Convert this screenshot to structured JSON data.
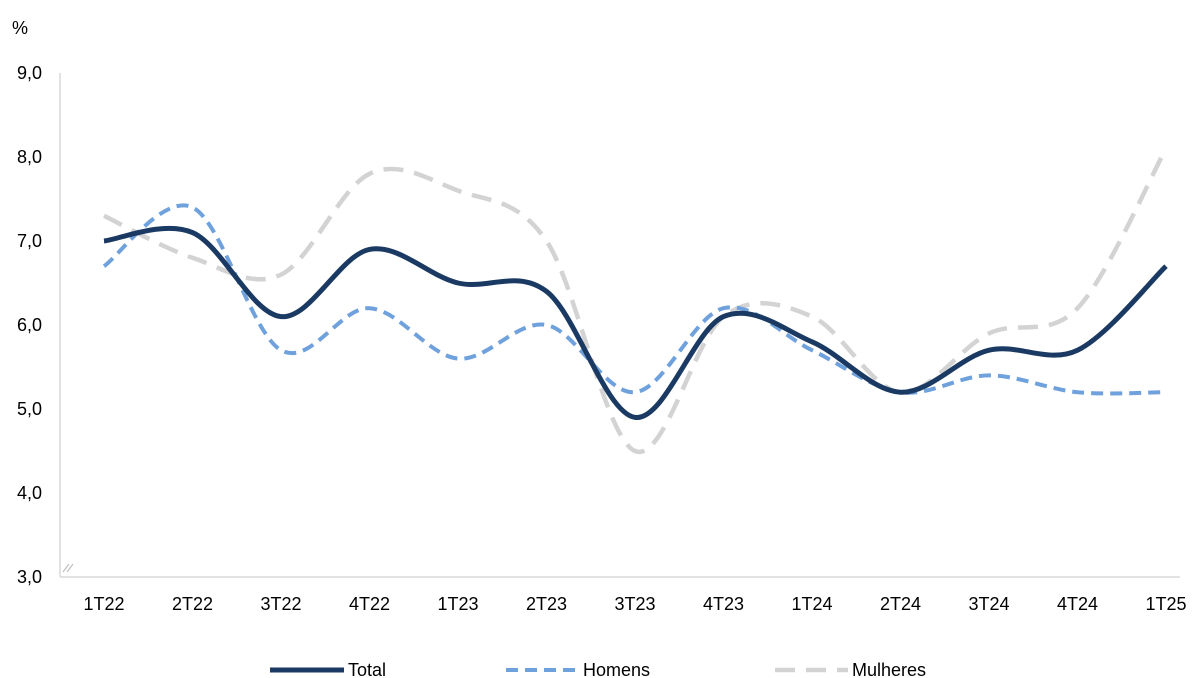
{
  "chart_data": {
    "type": "line",
    "unit_label": "%",
    "categories": [
      "1T22",
      "2T22",
      "3T22",
      "4T22",
      "1T23",
      "2T23",
      "3T23",
      "4T23",
      "1T24",
      "2T24",
      "3T24",
      "4T24",
      "1T25"
    ],
    "ylim": [
      3.0,
      9.0
    ],
    "yticks": [
      "3,0",
      "4,0",
      "5,0",
      "6,0",
      "7,0",
      "8,0",
      "9,0"
    ],
    "ytick_values": [
      3,
      4,
      5,
      6,
      7,
      8,
      9
    ],
    "axis_break": true,
    "grid": false,
    "legend_position": "bottom",
    "series": [
      {
        "name": "Total",
        "color": "#1b3a63",
        "style": "solid",
        "values": [
          7.0,
          7.1,
          6.1,
          6.9,
          6.5,
          6.4,
          4.9,
          6.1,
          5.8,
          5.2,
          5.7,
          5.7,
          6.7
        ]
      },
      {
        "name": "Homens",
        "color": "#6fa1dc",
        "style": "dashed",
        "values": [
          6.7,
          7.4,
          5.7,
          6.2,
          5.6,
          6.0,
          5.2,
          6.2,
          5.7,
          5.2,
          5.4,
          5.2,
          5.2
        ]
      },
      {
        "name": "Mulheres",
        "color": "#d3d3d3",
        "style": "dashed",
        "values": [
          7.3,
          6.8,
          6.6,
          7.8,
          7.6,
          7.0,
          4.5,
          6.1,
          6.1,
          5.2,
          5.9,
          6.2,
          8.1
        ]
      }
    ]
  }
}
